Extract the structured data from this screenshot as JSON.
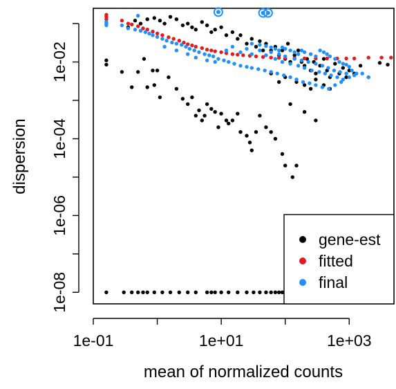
{
  "chart_data": {
    "type": "scatter",
    "title": "",
    "xlabel": "mean of normalized counts",
    "ylabel": "dispersion",
    "x_scale": "log10",
    "y_scale": "log10",
    "xlim": [
      0.1,
      5000
    ],
    "ylim": [
      5e-09,
      0.25
    ],
    "x_ticks": [
      0.1,
      10,
      1000
    ],
    "x_tick_labels": [
      "1e-01",
      "1e+01",
      "1e+03"
    ],
    "y_ticks": [
      1e-08,
      1e-06,
      0.0001,
      0.01
    ],
    "y_tick_labels": [
      "1e-08",
      "1e-06",
      "1e-04",
      "1e-02"
    ],
    "grid": false,
    "legend_position": "bottom-right",
    "legend": [
      {
        "label": "gene-est",
        "color": "#000000"
      },
      {
        "label": "fitted",
        "color": "#e41a1c"
      },
      {
        "label": "final",
        "color": "#1e90ff"
      }
    ],
    "series": [
      {
        "name": "gene-est",
        "color": "#000000",
        "points": [
          [
            0.16,
            0.011
          ],
          [
            0.16,
            0.0085
          ],
          [
            0.28,
            0.0055
          ],
          [
            0.4,
            0.0022
          ],
          [
            0.5,
            0.0055
          ],
          [
            0.62,
            0.012
          ],
          [
            0.7,
            0.0022
          ],
          [
            0.85,
            0.006
          ],
          [
            0.9,
            0.0025
          ],
          [
            1.0,
            0.006
          ],
          [
            1.1,
            0.0012
          ],
          [
            1.5,
            0.004
          ],
          [
            2.0,
            0.002
          ],
          [
            2.5,
            0.0011
          ],
          [
            3.0,
            0.0008
          ],
          [
            3.5,
            0.0012
          ],
          [
            4.0,
            0.0004
          ],
          [
            4.5,
            0.00055
          ],
          [
            5.0,
            0.0003
          ],
          [
            5.5,
            0.0004
          ],
          [
            6.0,
            0.0008
          ],
          [
            7.0,
            0.0006
          ],
          [
            8.0,
            0.0005
          ],
          [
            9.0,
            0.0002
          ],
          [
            10.0,
            0.00045
          ],
          [
            12.0,
            0.0003
          ],
          [
            13.0,
            0.00025
          ],
          [
            15.0,
            0.0003
          ],
          [
            18.0,
            0.00045
          ],
          [
            20.0,
            0.00015
          ],
          [
            25.0,
            0.00012
          ],
          [
            28.0,
            8e-05
          ],
          [
            30.0,
            5e-05
          ],
          [
            35.0,
            0.00015
          ],
          [
            40.0,
            0.0004
          ],
          [
            50.0,
            0.0002
          ],
          [
            60.0,
            0.00015
          ],
          [
            70.0,
            0.0001
          ],
          [
            90.0,
            4e-05
          ],
          [
            100.0,
            2e-05
          ],
          [
            130.0,
            1e-05
          ],
          [
            150.0,
            2e-05
          ],
          [
            120.0,
            0.0008
          ],
          [
            200.0,
            0.0005
          ],
          [
            300.0,
            0.0003
          ],
          [
            0.35,
            0.08
          ],
          [
            0.45,
            0.12
          ],
          [
            0.55,
            0.1
          ],
          [
            0.7,
            0.13
          ],
          [
            0.9,
            0.14
          ],
          [
            1.1,
            0.12
          ],
          [
            1.3,
            0.1
          ],
          [
            1.6,
            0.15
          ],
          [
            2.0,
            0.13
          ],
          [
            2.5,
            0.09
          ],
          [
            3.0,
            0.1
          ],
          [
            3.5,
            0.08
          ],
          [
            4.0,
            0.07
          ],
          [
            5.0,
            0.11
          ],
          [
            6.0,
            0.09
          ],
          [
            7.0,
            0.06
          ],
          [
            8.0,
            0.07
          ],
          [
            10.0,
            0.08
          ],
          [
            12.0,
            0.05
          ],
          [
            15.0,
            0.06
          ],
          [
            18.0,
            0.04
          ],
          [
            20.0,
            0.05
          ],
          [
            25.0,
            0.03
          ],
          [
            30.0,
            0.04
          ],
          [
            35.0,
            0.025
          ],
          [
            40.0,
            0.035
          ],
          [
            45.0,
            0.02
          ],
          [
            50.0,
            0.03
          ],
          [
            60.0,
            0.02
          ],
          [
            70.0,
            0.025
          ],
          [
            80.0,
            0.015
          ],
          [
            90.0,
            0.02
          ],
          [
            100.0,
            0.012
          ],
          [
            110.0,
            0.03
          ],
          [
            120.0,
            0.01
          ],
          [
            140.0,
            0.015
          ],
          [
            160.0,
            0.02
          ],
          [
            180.0,
            0.01
          ],
          [
            200.0,
            0.008
          ],
          [
            220.0,
            0.012
          ],
          [
            250.0,
            0.006
          ],
          [
            280.0,
            0.01
          ],
          [
            300.0,
            0.005
          ],
          [
            350.0,
            0.008
          ],
          [
            400.0,
            0.012
          ],
          [
            450.0,
            0.006
          ],
          [
            500.0,
            0.004
          ],
          [
            600.0,
            0.009
          ],
          [
            700.0,
            0.005
          ],
          [
            800.0,
            0.007
          ],
          [
            900.0,
            0.004
          ],
          [
            1000.0,
            0.006
          ],
          [
            1200.0,
            0.005
          ],
          [
            1500.0,
            0.008
          ],
          [
            2000.0,
            0.004
          ],
          [
            3000.0,
            0.0095
          ],
          [
            4000.0,
            0.0085
          ],
          [
            60.0,
            0.005
          ],
          [
            80.0,
            0.003
          ],
          [
            100.0,
            0.004
          ],
          [
            150.0,
            0.003
          ],
          [
            200.0,
            0.0025
          ],
          [
            250.0,
            0.002
          ],
          [
            300.0,
            0.0035
          ],
          [
            400.0,
            0.0025
          ],
          [
            500.0,
            0.002
          ],
          [
            0.16,
            1e-08
          ],
          [
            0.3,
            1e-08
          ],
          [
            0.4,
            1e-08
          ],
          [
            0.5,
            1e-08
          ],
          [
            0.6,
            1e-08
          ],
          [
            0.7,
            1e-08
          ],
          [
            0.9,
            1e-08
          ],
          [
            1.2,
            1e-08
          ],
          [
            1.6,
            1e-08
          ],
          [
            2.2,
            1e-08
          ],
          [
            3.0,
            1e-08
          ],
          [
            4.0,
            1e-08
          ],
          [
            6.0,
            1e-08
          ],
          [
            7.0,
            1e-08
          ],
          [
            8.0,
            1e-08
          ],
          [
            10.0,
            1e-08
          ],
          [
            13.0,
            1e-08
          ],
          [
            18.0,
            1e-08
          ],
          [
            25.0,
            1e-08
          ],
          [
            32.0,
            1e-08
          ],
          [
            40.0,
            1e-08
          ],
          [
            50.0,
            1e-08
          ],
          [
            60.0,
            1e-08
          ],
          [
            70.0,
            1e-08
          ],
          [
            80.0,
            1e-08
          ],
          [
            90.0,
            1e-08
          ]
        ]
      },
      {
        "name": "fitted",
        "color": "#e41a1c",
        "points": [
          [
            0.16,
            0.17
          ],
          [
            0.16,
            0.15
          ],
          [
            0.16,
            0.13
          ],
          [
            0.28,
            0.12
          ],
          [
            0.35,
            0.1
          ],
          [
            0.4,
            0.095
          ],
          [
            0.5,
            0.085
          ],
          [
            0.6,
            0.075
          ],
          [
            0.7,
            0.07
          ],
          [
            0.85,
            0.062
          ],
          [
            1.0,
            0.055
          ],
          [
            1.2,
            0.05
          ],
          [
            1.5,
            0.044
          ],
          [
            1.8,
            0.04
          ],
          [
            2.2,
            0.036
          ],
          [
            2.6,
            0.032
          ],
          [
            3.0,
            0.029
          ],
          [
            3.5,
            0.027
          ],
          [
            4.0,
            0.025
          ],
          [
            5.0,
            0.023
          ],
          [
            6.0,
            0.021
          ],
          [
            7.0,
            0.02
          ],
          [
            8.0,
            0.019
          ],
          [
            10.0,
            0.018
          ],
          [
            12.0,
            0.017
          ],
          [
            15.0,
            0.016
          ],
          [
            18.0,
            0.0155
          ],
          [
            22.0,
            0.015
          ],
          [
            28.0,
            0.0145
          ],
          [
            35.0,
            0.014
          ],
          [
            45.0,
            0.0135
          ],
          [
            60.0,
            0.013
          ],
          [
            80.0,
            0.0128
          ],
          [
            100.0,
            0.0126
          ],
          [
            140.0,
            0.0125
          ],
          [
            200.0,
            0.0124
          ],
          [
            300.0,
            0.0123
          ],
          [
            450.0,
            0.0123
          ],
          [
            650.0,
            0.0123
          ],
          [
            900.0,
            0.0123
          ],
          [
            1200.0,
            0.0123
          ],
          [
            2000.0,
            0.013
          ],
          [
            3200.0,
            0.013
          ],
          [
            4500.0,
            0.013
          ]
        ]
      },
      {
        "name": "final",
        "color": "#1e90ff",
        "points": [
          [
            0.16,
            0.11
          ],
          [
            0.16,
            0.1
          ],
          [
            0.16,
            0.09
          ],
          [
            0.28,
            0.09
          ],
          [
            0.35,
            0.075
          ],
          [
            0.45,
            0.07
          ],
          [
            0.5,
            0.16
          ],
          [
            0.55,
            0.065
          ],
          [
            0.65,
            0.06
          ],
          [
            0.75,
            0.055
          ],
          [
            0.85,
            0.05
          ],
          [
            1.0,
            0.045
          ],
          [
            1.2,
            0.04
          ],
          [
            1.4,
            0.036
          ],
          [
            1.7,
            0.032
          ],
          [
            2.0,
            0.03
          ],
          [
            2.4,
            0.028
          ],
          [
            2.8,
            0.025
          ],
          [
            3.2,
            0.022
          ],
          [
            3.8,
            0.02
          ],
          [
            4.5,
            0.018
          ],
          [
            5.5,
            0.016
          ],
          [
            6.5,
            0.015
          ],
          [
            7.5,
            0.014
          ],
          [
            9.0,
            0.012
          ],
          [
            11.0,
            0.011
          ],
          [
            13.0,
            0.01
          ],
          [
            16.0,
            0.009
          ],
          [
            20.0,
            0.008
          ],
          [
            25.0,
            0.0075
          ],
          [
            30.0,
            0.007
          ],
          [
            38.0,
            0.0065
          ],
          [
            48.0,
            0.006
          ],
          [
            60.0,
            0.0055
          ],
          [
            75.0,
            0.005
          ],
          [
            95.0,
            0.0045
          ],
          [
            120.0,
            0.004
          ],
          [
            150.0,
            0.0035
          ],
          [
            190.0,
            0.003
          ],
          [
            240.0,
            0.0028
          ],
          [
            300.0,
            0.0025
          ],
          [
            380.0,
            0.0022
          ],
          [
            480.0,
            0.002
          ],
          [
            600.0,
            0.0025
          ],
          [
            750.0,
            0.003
          ],
          [
            1.3,
            0.025
          ],
          [
            2.0,
            0.02
          ],
          [
            3.0,
            0.016
          ],
          [
            4.0,
            0.013
          ],
          [
            6.0,
            0.011
          ],
          [
            8.0,
            0.01
          ],
          [
            12.0,
            0.02
          ],
          [
            15.0,
            0.025
          ],
          [
            20.0,
            0.018
          ],
          [
            25.0,
            0.022
          ],
          [
            30.0,
            0.016
          ],
          [
            40.0,
            0.02
          ],
          [
            50.0,
            0.015
          ],
          [
            60.0,
            0.018
          ],
          [
            70.0,
            0.012
          ],
          [
            80.0,
            0.016
          ],
          [
            90.0,
            0.01
          ],
          [
            100.0,
            0.014
          ],
          [
            120.0,
            0.009
          ],
          [
            140.0,
            0.012
          ],
          [
            160.0,
            0.008
          ],
          [
            180.0,
            0.011
          ],
          [
            200.0,
            0.007
          ],
          [
            230.0,
            0.01
          ],
          [
            260.0,
            0.006
          ],
          [
            300.0,
            0.009
          ],
          [
            340.0,
            0.0055
          ],
          [
            380.0,
            0.008
          ],
          [
            420.0,
            0.005
          ],
          [
            470.0,
            0.007
          ],
          [
            520.0,
            0.0045
          ],
          [
            580.0,
            0.006
          ],
          [
            650.0,
            0.004
          ],
          [
            720.0,
            0.0055
          ],
          [
            800.0,
            0.0035
          ],
          [
            900.0,
            0.005
          ],
          [
            1000.0,
            0.004
          ],
          [
            1200.0,
            0.0045
          ],
          [
            30.0,
            0.03
          ],
          [
            40.0,
            0.028
          ],
          [
            50.0,
            0.026
          ],
          [
            60.0,
            0.024
          ],
          [
            70.0,
            0.022
          ],
          [
            80.0,
            0.02
          ],
          [
            90.0,
            0.024
          ],
          [
            100.0,
            0.022
          ],
          [
            120.0,
            0.02
          ],
          [
            140.0,
            0.018
          ],
          [
            160.0,
            0.016
          ],
          [
            180.0,
            0.02
          ],
          [
            200.0,
            0.018
          ],
          [
            250.0,
            0.016
          ],
          [
            300.0,
            0.014
          ],
          [
            350.0,
            0.02
          ],
          [
            400.0,
            0.018
          ],
          [
            450.0,
            0.016
          ],
          [
            500.0,
            0.014
          ],
          [
            600.0,
            0.012
          ],
          [
            700.0,
            0.01
          ],
          [
            800.0,
            0.009
          ],
          [
            900.0,
            0.0085
          ],
          [
            1000.0,
            0.0075
          ],
          [
            1100.0,
            0.006
          ],
          [
            1300.0,
            0.005
          ],
          [
            1600.0,
            0.005
          ],
          [
            2000.0,
            0.004
          ]
        ]
      },
      {
        "name": "outliers",
        "color": "#1e90ff",
        "style": "circled",
        "points": [
          [
            9.0,
            0.2
          ],
          [
            45.0,
            0.19
          ],
          [
            54.0,
            0.19
          ]
        ]
      }
    ]
  }
}
